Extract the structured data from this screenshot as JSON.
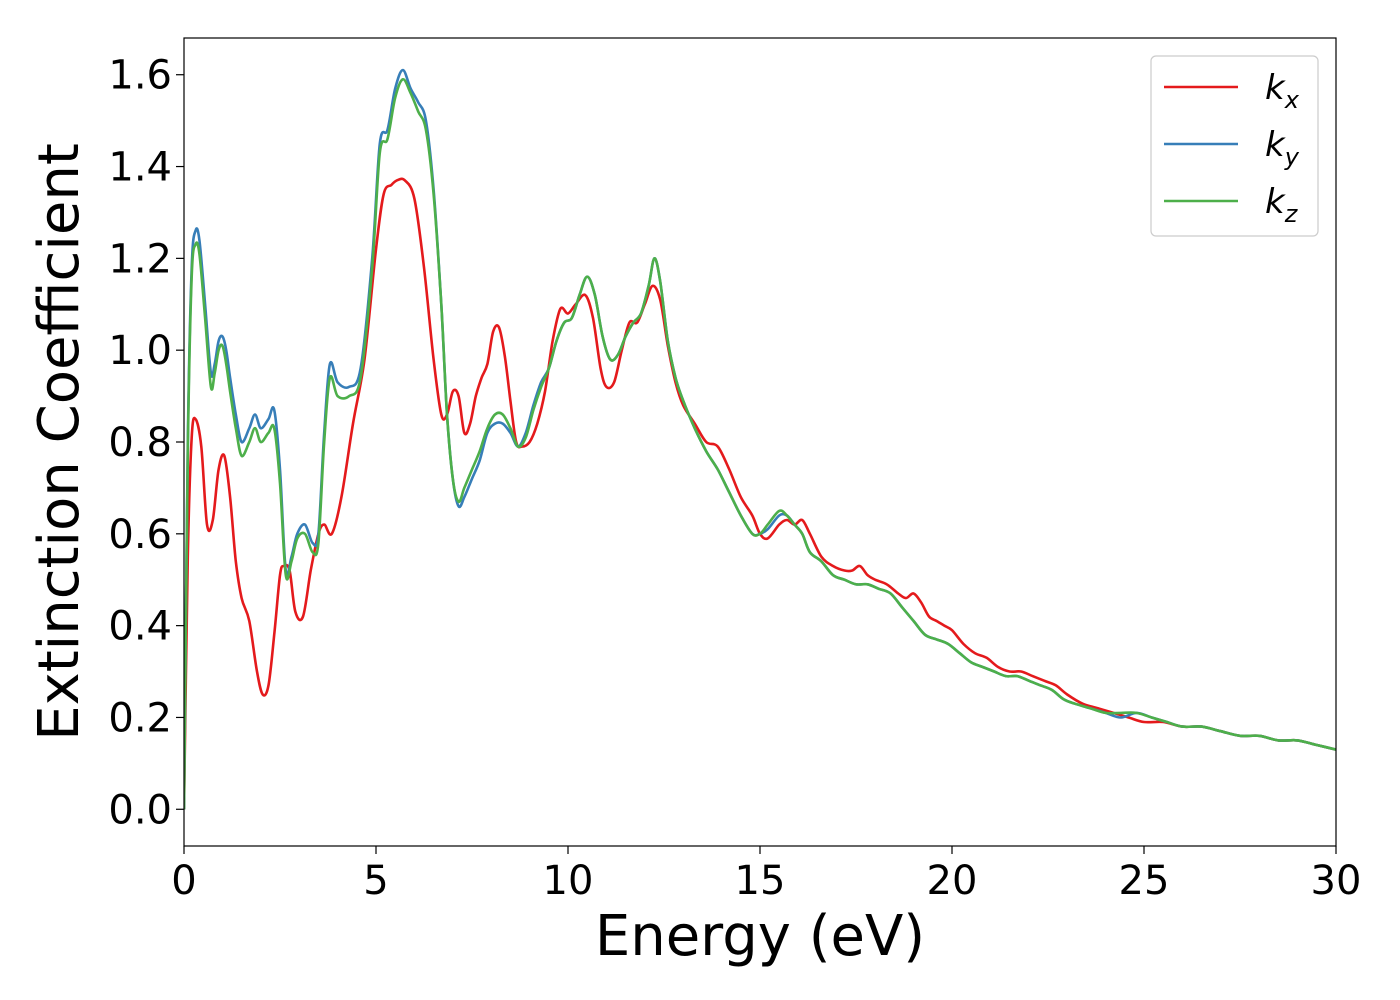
{
  "chart_data": {
    "type": "line",
    "xlabel": "Energy (eV)",
    "ylabel": "Extinction Coefficient",
    "xlim": [
      0,
      30
    ],
    "ylim": [
      -0.08,
      1.68
    ],
    "xticks": [
      0,
      5,
      10,
      15,
      20,
      25,
      30
    ],
    "xtick_labels": [
      "0",
      "5",
      "10",
      "15",
      "20",
      "25",
      "30"
    ],
    "yticks": [
      0.0,
      0.2,
      0.4,
      0.6,
      0.8,
      1.0,
      1.2,
      1.4,
      1.6
    ],
    "ytick_labels": [
      "0.0",
      "0.2",
      "0.4",
      "0.6",
      "0.8",
      "1.0",
      "1.2",
      "1.4",
      "1.6"
    ],
    "grid": false,
    "legend_position": "top-right",
    "series": [
      {
        "name": "k_x",
        "label_main": "k",
        "label_sub": "x",
        "color": "#e41a1c",
        "x": [
          0,
          0.1,
          0.2,
          0.3,
          0.45,
          0.6,
          0.75,
          0.9,
          1.05,
          1.2,
          1.35,
          1.5,
          1.7,
          1.9,
          2.05,
          2.2,
          2.35,
          2.5,
          2.6,
          2.75,
          2.9,
          3.1,
          3.3,
          3.5,
          3.65,
          3.85,
          4.1,
          4.4,
          4.7,
          5.0,
          5.2,
          5.4,
          5.55,
          5.75,
          6.0,
          6.25,
          6.5,
          6.7,
          6.85,
          7.0,
          7.15,
          7.3,
          7.45,
          7.6,
          7.75,
          7.9,
          8.05,
          8.2,
          8.35,
          8.5,
          8.65,
          8.8,
          9.0,
          9.2,
          9.4,
          9.6,
          9.8,
          10.0,
          10.2,
          10.45,
          10.65,
          10.85,
          11.0,
          11.2,
          11.4,
          11.6,
          11.8,
          12.0,
          12.2,
          12.4,
          12.6,
          12.8,
          13.0,
          13.3,
          13.6,
          13.9,
          14.2,
          14.5,
          14.8,
          15.0,
          15.2,
          15.5,
          15.7,
          15.9,
          16.1,
          16.3,
          16.6,
          16.9,
          17.2,
          17.4,
          17.6,
          17.8,
          18.0,
          18.3,
          18.6,
          18.8,
          19.0,
          19.2,
          19.4,
          19.6,
          19.8,
          20.0,
          20.3,
          20.6,
          20.9,
          21.2,
          21.5,
          21.8,
          22.1,
          22.4,
          22.7,
          23.0,
          23.4,
          23.8,
          24.2,
          24.6,
          25.0,
          25.5,
          26.0,
          26.5,
          27.0,
          27.5,
          28.0,
          28.5,
          29.0,
          29.5,
          30.0
        ],
        "y": [
          0.0,
          0.55,
          0.81,
          0.85,
          0.79,
          0.62,
          0.63,
          0.74,
          0.77,
          0.68,
          0.54,
          0.46,
          0.41,
          0.3,
          0.25,
          0.27,
          0.38,
          0.51,
          0.53,
          0.52,
          0.43,
          0.42,
          0.52,
          0.6,
          0.62,
          0.6,
          0.68,
          0.84,
          0.98,
          1.22,
          1.34,
          1.36,
          1.37,
          1.37,
          1.33,
          1.18,
          0.98,
          0.86,
          0.86,
          0.91,
          0.9,
          0.82,
          0.84,
          0.9,
          0.94,
          0.97,
          1.04,
          1.05,
          0.99,
          0.89,
          0.8,
          0.79,
          0.8,
          0.84,
          0.91,
          1.02,
          1.09,
          1.08,
          1.1,
          1.12,
          1.07,
          0.96,
          0.92,
          0.93,
          1.0,
          1.06,
          1.06,
          1.1,
          1.14,
          1.11,
          1.01,
          0.93,
          0.88,
          0.84,
          0.8,
          0.79,
          0.74,
          0.68,
          0.64,
          0.6,
          0.59,
          0.62,
          0.63,
          0.62,
          0.63,
          0.6,
          0.55,
          0.53,
          0.52,
          0.52,
          0.53,
          0.51,
          0.5,
          0.49,
          0.47,
          0.46,
          0.47,
          0.45,
          0.42,
          0.41,
          0.4,
          0.39,
          0.36,
          0.34,
          0.33,
          0.31,
          0.3,
          0.3,
          0.29,
          0.28,
          0.27,
          0.25,
          0.23,
          0.22,
          0.21,
          0.2,
          0.19,
          0.19,
          0.18,
          0.18,
          0.17,
          0.16,
          0.16,
          0.15,
          0.15,
          0.14,
          0.13
        ]
      },
      {
        "name": "k_y",
        "label_main": "k",
        "label_sub": "y",
        "color": "#377eb8",
        "x": [
          0,
          0.1,
          0.2,
          0.3,
          0.4,
          0.55,
          0.7,
          0.8,
          0.9,
          1.0,
          1.1,
          1.2,
          1.35,
          1.5,
          1.7,
          1.85,
          2.0,
          2.2,
          2.35,
          2.5,
          2.65,
          2.8,
          2.95,
          3.15,
          3.35,
          3.5,
          3.65,
          3.8,
          4.0,
          4.3,
          4.6,
          4.9,
          5.1,
          5.3,
          5.5,
          5.7,
          5.9,
          6.1,
          6.3,
          6.5,
          6.7,
          6.85,
          7.0,
          7.15,
          7.3,
          7.5,
          7.7,
          7.9,
          8.1,
          8.3,
          8.5,
          8.7,
          8.9,
          9.1,
          9.3,
          9.5,
          9.7,
          9.9,
          10.1,
          10.3,
          10.5,
          10.7,
          10.9,
          11.1,
          11.3,
          11.5,
          11.7,
          11.9,
          12.1,
          12.25,
          12.4,
          12.6,
          12.8,
          13.0,
          13.3,
          13.6,
          13.9,
          14.2,
          14.5,
          14.8,
          15.0,
          15.2,
          15.5,
          15.7,
          15.9,
          16.1,
          16.3,
          16.6,
          16.9,
          17.2,
          17.5,
          17.8,
          18.1,
          18.4,
          18.7,
          19.0,
          19.3,
          19.6,
          19.9,
          20.2,
          20.5,
          20.8,
          21.1,
          21.4,
          21.7,
          22.0,
          22.3,
          22.6,
          22.9,
          23.2,
          23.6,
          24.0,
          24.4,
          24.8,
          25.2,
          25.6,
          26.0,
          26.5,
          27.0,
          27.5,
          28.0,
          28.5,
          29.0,
          29.5,
          30.0
        ],
        "y": [
          0.0,
          0.8,
          1.18,
          1.26,
          1.24,
          1.1,
          0.95,
          0.97,
          1.02,
          1.03,
          1.0,
          0.94,
          0.86,
          0.8,
          0.83,
          0.86,
          0.83,
          0.85,
          0.87,
          0.74,
          0.52,
          0.55,
          0.6,
          0.62,
          0.58,
          0.6,
          0.82,
          0.97,
          0.93,
          0.92,
          0.96,
          1.2,
          1.45,
          1.48,
          1.57,
          1.61,
          1.57,
          1.54,
          1.5,
          1.35,
          1.1,
          0.86,
          0.72,
          0.66,
          0.68,
          0.72,
          0.76,
          0.82,
          0.84,
          0.84,
          0.82,
          0.79,
          0.82,
          0.88,
          0.93,
          0.96,
          1.02,
          1.06,
          1.07,
          1.12,
          1.16,
          1.12,
          1.03,
          0.98,
          0.99,
          1.03,
          1.06,
          1.08,
          1.14,
          1.2,
          1.15,
          1.02,
          0.94,
          0.89,
          0.83,
          0.78,
          0.74,
          0.69,
          0.64,
          0.6,
          0.6,
          0.61,
          0.64,
          0.64,
          0.62,
          0.6,
          0.56,
          0.54,
          0.51,
          0.5,
          0.49,
          0.49,
          0.48,
          0.47,
          0.44,
          0.41,
          0.38,
          0.37,
          0.36,
          0.34,
          0.32,
          0.31,
          0.3,
          0.29,
          0.29,
          0.28,
          0.27,
          0.26,
          0.24,
          0.23,
          0.22,
          0.21,
          0.2,
          0.21,
          0.2,
          0.19,
          0.18,
          0.18,
          0.17,
          0.16,
          0.16,
          0.15,
          0.15,
          0.14,
          0.13
        ]
      },
      {
        "name": "k_z",
        "label_main": "k",
        "label_sub": "z",
        "color": "#4daf4a",
        "x": [
          0,
          0.1,
          0.2,
          0.3,
          0.4,
          0.55,
          0.7,
          0.8,
          0.9,
          1.0,
          1.1,
          1.2,
          1.35,
          1.5,
          1.7,
          1.85,
          2.0,
          2.2,
          2.35,
          2.5,
          2.65,
          2.8,
          2.95,
          3.15,
          3.35,
          3.5,
          3.65,
          3.8,
          4.0,
          4.3,
          4.6,
          4.9,
          5.1,
          5.3,
          5.5,
          5.7,
          5.9,
          6.1,
          6.3,
          6.5,
          6.7,
          6.85,
          7.0,
          7.15,
          7.3,
          7.5,
          7.7,
          7.9,
          8.1,
          8.3,
          8.5,
          8.7,
          8.9,
          9.1,
          9.3,
          9.5,
          9.7,
          9.9,
          10.1,
          10.3,
          10.5,
          10.7,
          10.9,
          11.1,
          11.3,
          11.5,
          11.7,
          11.9,
          12.1,
          12.25,
          12.4,
          12.6,
          12.8,
          13.0,
          13.3,
          13.6,
          13.9,
          14.2,
          14.5,
          14.8,
          15.0,
          15.2,
          15.5,
          15.7,
          15.9,
          16.1,
          16.3,
          16.6,
          16.9,
          17.2,
          17.5,
          17.8,
          18.1,
          18.4,
          18.7,
          19.0,
          19.3,
          19.6,
          19.9,
          20.2,
          20.5,
          20.8,
          21.1,
          21.4,
          21.7,
          22.0,
          22.3,
          22.6,
          22.9,
          23.2,
          23.6,
          24.0,
          24.4,
          24.8,
          25.2,
          25.6,
          26.0,
          26.5,
          27.0,
          27.5,
          28.0,
          28.5,
          29.0,
          29.5,
          30.0
        ],
        "y": [
          0.0,
          0.78,
          1.16,
          1.23,
          1.21,
          1.07,
          0.92,
          0.95,
          1.0,
          1.01,
          0.97,
          0.91,
          0.83,
          0.77,
          0.8,
          0.83,
          0.8,
          0.82,
          0.83,
          0.71,
          0.51,
          0.54,
          0.59,
          0.6,
          0.56,
          0.58,
          0.8,
          0.94,
          0.9,
          0.9,
          0.94,
          1.18,
          1.43,
          1.46,
          1.55,
          1.59,
          1.56,
          1.52,
          1.48,
          1.34,
          1.1,
          0.86,
          0.72,
          0.67,
          0.7,
          0.74,
          0.78,
          0.83,
          0.86,
          0.86,
          0.83,
          0.79,
          0.81,
          0.87,
          0.92,
          0.96,
          1.02,
          1.06,
          1.07,
          1.12,
          1.16,
          1.12,
          1.03,
          0.98,
          0.99,
          1.03,
          1.06,
          1.08,
          1.14,
          1.2,
          1.15,
          1.02,
          0.94,
          0.89,
          0.83,
          0.78,
          0.74,
          0.69,
          0.64,
          0.6,
          0.6,
          0.62,
          0.65,
          0.64,
          0.62,
          0.6,
          0.56,
          0.54,
          0.51,
          0.5,
          0.49,
          0.49,
          0.48,
          0.47,
          0.44,
          0.41,
          0.38,
          0.37,
          0.36,
          0.34,
          0.32,
          0.31,
          0.3,
          0.29,
          0.29,
          0.28,
          0.27,
          0.26,
          0.24,
          0.23,
          0.22,
          0.21,
          0.21,
          0.21,
          0.2,
          0.19,
          0.18,
          0.18,
          0.17,
          0.16,
          0.16,
          0.15,
          0.15,
          0.14,
          0.13
        ]
      }
    ]
  }
}
